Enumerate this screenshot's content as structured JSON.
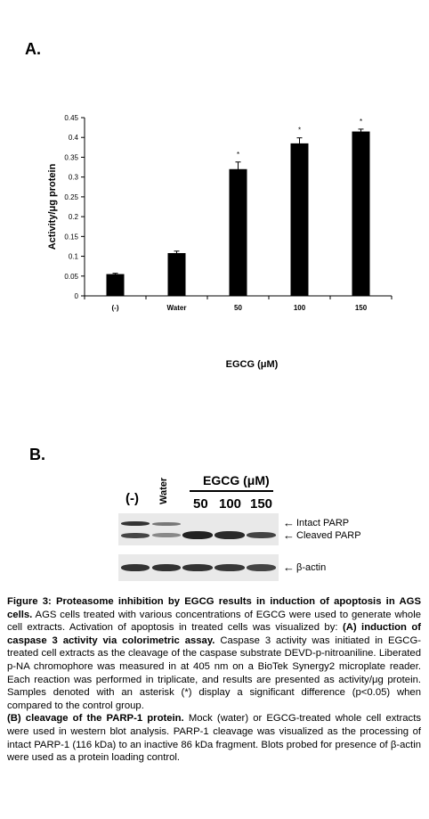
{
  "panel_a": {
    "label": "A."
  },
  "panel_b": {
    "label": "B."
  },
  "chart_data": {
    "type": "bar",
    "categories": [
      "(-)",
      "Water",
      "50",
      "100",
      "150"
    ],
    "values": [
      0.055,
      0.108,
      0.32,
      0.385,
      0.415
    ],
    "errors": [
      0.002,
      0.005,
      0.018,
      0.014,
      0.006
    ],
    "significance": [
      "",
      "",
      "*",
      "*",
      "*"
    ],
    "title": "",
    "xlabel": "EGCG (μM)",
    "ylabel": "Activity/μg protein",
    "ylim": [
      0,
      0.45
    ],
    "yticks": [
      "0",
      "0.05",
      "0.1",
      "0.15",
      "0.2",
      "0.25",
      "0.3",
      "0.35",
      "0.4",
      "0.45"
    ],
    "bar_color": "#000000",
    "grid": false
  },
  "blot": {
    "egcg_header": "EGCG (μM)",
    "lanes": [
      "(-)",
      "Water",
      "50",
      "100",
      "150"
    ],
    "labels": {
      "intact": "Intact PARP",
      "cleaved": "Cleaved PARP",
      "actin": "β-actin"
    }
  },
  "caption": {
    "figure_title": "Figure 3: Proteasome inhibition by EGCG results in induction of apoptosis in AGS cells.",
    "intro": " AGS cells treated with various concentrations of EGCG were used to generate whole cell extracts. Activation of apoptosis in treated cells was visualized by: ",
    "part_a_title": "(A) induction of caspase 3 activity via colorimetric assay.",
    "part_a_text": " Caspase 3 activity was initiated in EGCG-treated cell extracts as the cleavage of the caspase substrate DEVD-p-nitroaniline. Liberated p-NA chromophore was measured in at 405 nm on a BioTek Synergy2 microplate reader. Each reaction was performed in triplicate, and results are presented as activity/μg protein. Samples denoted with an asterisk (*) display a significant difference (p<0.05) when compared to the control group.",
    "part_b_title": "(B) cleavage of the PARP-1 protein.",
    "part_b_text": " Mock (water) or EGCG-treated whole cell extracts were used in western blot analysis. PARP-1 cleavage was visualized as the processing of intact PARP-1 (116 kDa) to an inactive 86 kDa fragment. Blots probed for presence of β-actin were used as a protein loading control."
  }
}
